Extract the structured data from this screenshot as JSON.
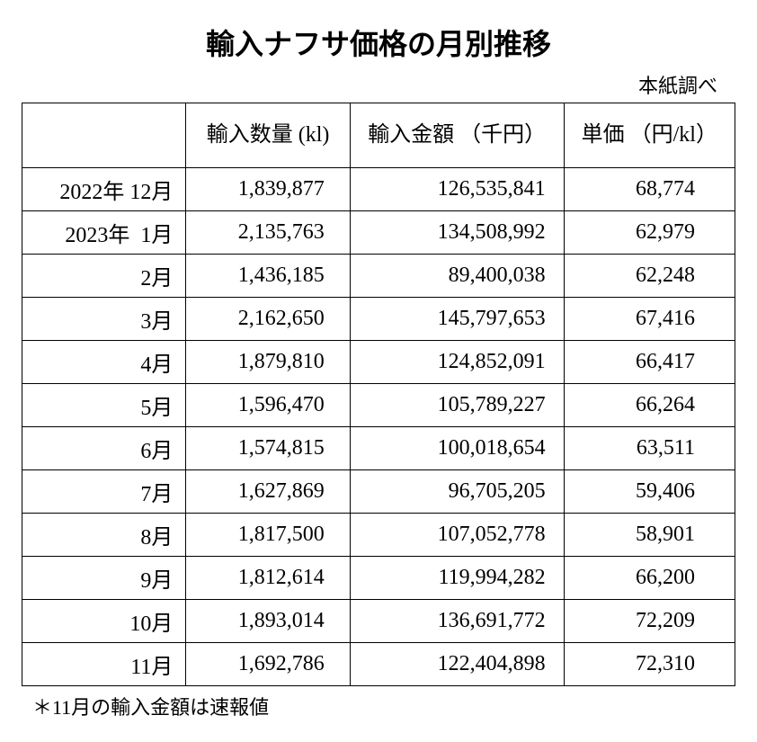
{
  "title": "輸入ナフサ価格の月別推移",
  "source": "本紙調べ",
  "columns": {
    "period": "",
    "qty": "輸入数量\n(kl)",
    "amt": "輸入金額\n（千円）",
    "unit": "単価\n（円/kl）"
  },
  "rows": [
    {
      "period": "2022年 12月",
      "qty": "1,839,877",
      "amt": "126,535,841",
      "unit": "68,774"
    },
    {
      "period": "2023年  1月",
      "qty": "2,135,763",
      "amt": "134,508,992",
      "unit": "62,979"
    },
    {
      "period": "2月",
      "qty": "1,436,185",
      "amt": "89,400,038",
      "unit": "62,248"
    },
    {
      "period": "3月",
      "qty": "2,162,650",
      "amt": "145,797,653",
      "unit": "67,416"
    },
    {
      "period": "4月",
      "qty": "1,879,810",
      "amt": "124,852,091",
      "unit": "66,417"
    },
    {
      "period": "5月",
      "qty": "1,596,470",
      "amt": "105,789,227",
      "unit": "66,264"
    },
    {
      "period": "6月",
      "qty": "1,574,815",
      "amt": "100,018,654",
      "unit": "63,511"
    },
    {
      "period": "7月",
      "qty": "1,627,869",
      "amt": "96,705,205",
      "unit": "59,406"
    },
    {
      "period": "8月",
      "qty": "1,817,500",
      "amt": "107,052,778",
      "unit": "58,901"
    },
    {
      "period": "9月",
      "qty": "1,812,614",
      "amt": "119,994,282",
      "unit": "66,200"
    },
    {
      "period": "10月",
      "qty": "1,893,014",
      "amt": "136,691,772",
      "unit": "72,209"
    },
    {
      "period": "11月",
      "qty": "1,692,786",
      "amt": "122,404,898",
      "unit": "72,310"
    }
  ],
  "footnote": "＊11月の輸入金額は速報値",
  "style": {
    "type": "table",
    "background_color": "#ffffff",
    "border_color": "#000000",
    "text_color": "#000000",
    "title_fontsize": 32,
    "title_font_family": "sans-serif",
    "cell_fontsize": 24,
    "footnote_fontsize": 22,
    "col_widths_pct": [
      23,
      23,
      30,
      24
    ],
    "col_align": [
      "right",
      "right",
      "right",
      "right"
    ],
    "number_format": "comma-grouped"
  }
}
